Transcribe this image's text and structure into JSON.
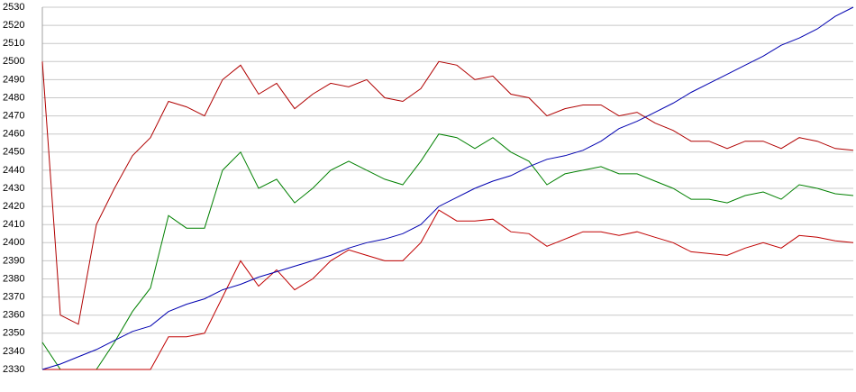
{
  "chart_data": {
    "type": "line",
    "ylim": [
      2330,
      2530
    ],
    "yticks": [
      2330,
      2340,
      2350,
      2360,
      2370,
      2380,
      2390,
      2400,
      2410,
      2420,
      2430,
      2440,
      2450,
      2460,
      2470,
      2480,
      2490,
      2500,
      2510,
      2520,
      2530
    ],
    "grid": true,
    "series": [
      {
        "color": "#b00000",
        "values": [
          2500,
          2360,
          2355,
          2410,
          2430,
          2448,
          2458,
          2478,
          2475,
          2470,
          2490,
          2498,
          2482,
          2488,
          2474,
          2482,
          2488,
          2486,
          2490,
          2480,
          2478,
          2485,
          2500,
          2498,
          2490,
          2492,
          2482,
          2480,
          2470,
          2474,
          2476,
          2476,
          2470,
          2472,
          2466,
          2462,
          2456,
          2456,
          2452,
          2456,
          2456,
          2452,
          2458,
          2456,
          2452,
          2451
        ]
      },
      {
        "color": "#008000",
        "values": [
          2345,
          2330,
          2330,
          2330,
          2345,
          2362,
          2375,
          2415,
          2408,
          2408,
          2440,
          2450,
          2430,
          2435,
          2422,
          2430,
          2440,
          2445,
          2440,
          2435,
          2432,
          2445,
          2460,
          2458,
          2452,
          2458,
          2450,
          2445,
          2432,
          2438,
          2440,
          2442,
          2438,
          2438,
          2434,
          2430,
          2424,
          2424,
          2422,
          2426,
          2428,
          2424,
          2432,
          2430,
          2427,
          2426
        ]
      },
      {
        "color": "#c00000",
        "values": [
          2330,
          2330,
          2330,
          2330,
          2330,
          2330,
          2330,
          2348,
          2348,
          2350,
          2370,
          2390,
          2376,
          2385,
          2374,
          2380,
          2390,
          2396,
          2393,
          2390,
          2390,
          2400,
          2418,
          2412,
          2412,
          2413,
          2406,
          2405,
          2398,
          2402,
          2406,
          2406,
          2404,
          2406,
          2403,
          2400,
          2395,
          2394,
          2393,
          2397,
          2400,
          2397,
          2404,
          2403,
          2401,
          2400
        ]
      },
      {
        "color": "#0000b0",
        "values": [
          2330,
          2333,
          2337,
          2341,
          2346,
          2351,
          2354,
          2362,
          2366,
          2369,
          2374,
          2377,
          2381,
          2384,
          2387,
          2390,
          2393,
          2397,
          2400,
          2402,
          2405,
          2410,
          2420,
          2425,
          2430,
          2434,
          2437,
          2442,
          2446,
          2448,
          2451,
          2456,
          2463,
          2467,
          2472,
          2477,
          2483,
          2488,
          2493,
          2498,
          2503,
          2509,
          2513,
          2518,
          2525,
          2530
        ]
      }
    ]
  }
}
